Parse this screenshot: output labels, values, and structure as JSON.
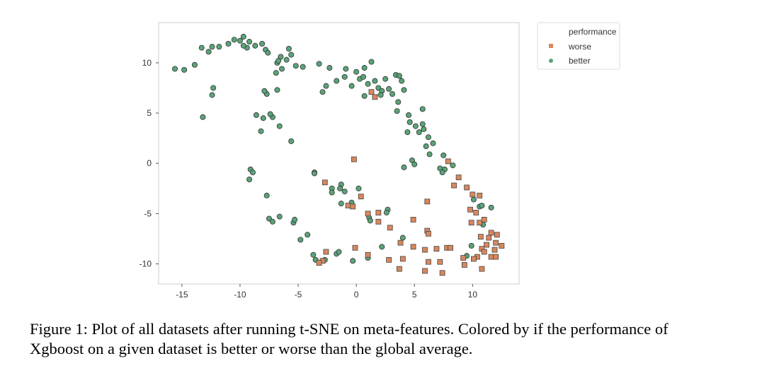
{
  "chart_data": {
    "type": "scatter",
    "title": "",
    "xlabel": "",
    "ylabel": "",
    "xlim": [
      -17,
      14
    ],
    "ylim": [
      -12,
      14
    ],
    "grid": false,
    "x_ticks": [
      -15,
      -10,
      -5,
      0,
      5,
      10
    ],
    "y_ticks": [
      -10,
      -5,
      0,
      5,
      10
    ],
    "legend": {
      "title": "performance",
      "placement": "outside-top-right",
      "entries": [
        {
          "label": "worse",
          "marker": "square",
          "color": "#d9875d"
        },
        {
          "label": "better",
          "marker": "circle",
          "color": "#5aa378"
        }
      ]
    },
    "series": [
      {
        "name": "worse",
        "marker": "square",
        "color": "#d9875d",
        "points": [
          [
            -0.2,
            0.4
          ],
          [
            -2.7,
            -1.9
          ],
          [
            -0.7,
            -4.2
          ],
          [
            -0.3,
            -4.3
          ],
          [
            0.4,
            -3.3
          ],
          [
            1.3,
            7.1
          ],
          [
            1.6,
            6.6
          ],
          [
            1.9,
            -4.9
          ],
          [
            1.0,
            -5.0
          ],
          [
            1.9,
            -5.8
          ],
          [
            2.9,
            -6.4
          ],
          [
            4.9,
            -5.6
          ],
          [
            6.1,
            -3.8
          ],
          [
            6.1,
            -6.7
          ],
          [
            6.2,
            -7.0
          ],
          [
            3.8,
            -7.9
          ],
          [
            4.9,
            -8.3
          ],
          [
            5.9,
            -8.6
          ],
          [
            6.9,
            -8.5
          ],
          [
            7.8,
            -8.4
          ],
          [
            8.1,
            -8.4
          ],
          [
            6.2,
            -9.8
          ],
          [
            7.2,
            -9.8
          ],
          [
            3.7,
            -10.5
          ],
          [
            2.8,
            -9.6
          ],
          [
            4.0,
            -9.5
          ],
          [
            5.9,
            -10.7
          ],
          [
            7.4,
            -10.9
          ],
          [
            -0.1,
            -8.4
          ],
          [
            1.0,
            -9.1
          ],
          [
            -2.6,
            -8.8
          ],
          [
            -2.9,
            -9.7
          ],
          [
            -3.2,
            -9.9
          ],
          [
            7.9,
            0.2
          ],
          [
            8.8,
            -1.4
          ],
          [
            8.4,
            -2.2
          ],
          [
            9.5,
            -2.4
          ],
          [
            10.0,
            -3.1
          ],
          [
            10.6,
            -3.2
          ],
          [
            9.8,
            -4.6
          ],
          [
            10.3,
            -4.9
          ],
          [
            10.6,
            -5.9
          ],
          [
            9.9,
            -5.9
          ],
          [
            11.0,
            -5.6
          ],
          [
            10.7,
            -7.3
          ],
          [
            11.4,
            -7.4
          ],
          [
            11.6,
            -6.9
          ],
          [
            11.2,
            -8.1
          ],
          [
            12.1,
            -7.1
          ],
          [
            12.0,
            -7.9
          ],
          [
            12.5,
            -8.2
          ],
          [
            11.9,
            -8.6
          ],
          [
            10.8,
            -8.5
          ],
          [
            11.0,
            -8.8
          ],
          [
            11.6,
            -9.3
          ],
          [
            10.4,
            -9.3
          ],
          [
            12.0,
            -9.3
          ],
          [
            10.1,
            -9.5
          ],
          [
            9.2,
            -9.4
          ],
          [
            9.3,
            -10.1
          ],
          [
            10.8,
            -10.5
          ]
        ]
      },
      {
        "name": "better",
        "marker": "circle",
        "color": "#5aa378",
        "points": [
          [
            -15.6,
            9.4
          ],
          [
            -14.8,
            9.3
          ],
          [
            -13.9,
            9.8
          ],
          [
            -13.3,
            11.5
          ],
          [
            -12.7,
            11.1
          ],
          [
            -12.4,
            11.6
          ],
          [
            -11.8,
            11.6
          ],
          [
            -11.0,
            11.9
          ],
          [
            -10.5,
            12.3
          ],
          [
            -10.0,
            12.2
          ],
          [
            -9.7,
            12.6
          ],
          [
            -9.4,
            11.5
          ],
          [
            -9.2,
            12.1
          ],
          [
            -8.7,
            11.7
          ],
          [
            -8.1,
            11.9
          ],
          [
            -7.8,
            11.3
          ],
          [
            -7.6,
            11.0
          ],
          [
            -6.8,
            10.0
          ],
          [
            -6.4,
            9.4
          ],
          [
            -6.5,
            10.6
          ],
          [
            -6.0,
            10.3
          ],
          [
            -5.8,
            11.4
          ],
          [
            -5.6,
            10.8
          ],
          [
            -5.2,
            9.7
          ],
          [
            -4.6,
            9.6
          ],
          [
            -9.7,
            11.7
          ],
          [
            -13.2,
            4.6
          ],
          [
            -12.3,
            7.5
          ],
          [
            -12.4,
            6.8
          ],
          [
            -8.6,
            4.8
          ],
          [
            -8.0,
            4.5
          ],
          [
            -7.2,
            4.6
          ],
          [
            -7.4,
            4.9
          ],
          [
            -6.6,
            3.7
          ],
          [
            -8.2,
            3.2
          ],
          [
            -5.6,
            2.2
          ],
          [
            -7.7,
            6.9
          ],
          [
            -7.9,
            7.2
          ],
          [
            -6.8,
            7.3
          ],
          [
            -6.9,
            9.0
          ],
          [
            -6.7,
            10.2
          ],
          [
            -2.6,
            7.7
          ],
          [
            -2.9,
            7.1
          ],
          [
            -3.2,
            9.9
          ],
          [
            -2.3,
            9.5
          ],
          [
            -1.7,
            8.2
          ],
          [
            -1.0,
            8.6
          ],
          [
            -0.9,
            9.4
          ],
          [
            -0.4,
            7.7
          ],
          [
            0.0,
            9.1
          ],
          [
            0.3,
            8.4
          ],
          [
            0.6,
            8.6
          ],
          [
            0.7,
            9.5
          ],
          [
            1.3,
            10.1
          ],
          [
            1.0,
            7.9
          ],
          [
            0.7,
            6.7
          ],
          [
            1.6,
            8.2
          ],
          [
            1.9,
            7.5
          ],
          [
            2.2,
            7.2
          ],
          [
            2.1,
            6.8
          ],
          [
            2.5,
            8.4
          ],
          [
            2.8,
            7.4
          ],
          [
            3.1,
            6.9
          ],
          [
            3.4,
            8.8
          ],
          [
            3.9,
            8.2
          ],
          [
            3.7,
            8.7
          ],
          [
            4.1,
            7.3
          ],
          [
            3.6,
            6.1
          ],
          [
            3.5,
            5.2
          ],
          [
            4.5,
            4.8
          ],
          [
            4.6,
            4.1
          ],
          [
            5.1,
            3.7
          ],
          [
            5.4,
            3.1
          ],
          [
            4.4,
            3.1
          ],
          [
            5.7,
            5.4
          ],
          [
            5.7,
            3.9
          ],
          [
            6.2,
            2.6
          ],
          [
            6.0,
            1.7
          ],
          [
            5.8,
            3.4
          ],
          [
            6.6,
            2.0
          ],
          [
            6.3,
            0.9
          ],
          [
            4.8,
            0.3
          ],
          [
            4.1,
            -0.4
          ],
          [
            5.0,
            -0.1
          ],
          [
            7.5,
            0.8
          ],
          [
            7.2,
            -0.5
          ],
          [
            7.6,
            -0.6
          ],
          [
            7.4,
            -0.9
          ],
          [
            8.3,
            -0.2
          ],
          [
            10.1,
            -3.6
          ],
          [
            10.6,
            -4.3
          ],
          [
            10.8,
            -4.2
          ],
          [
            11.6,
            -4.4
          ],
          [
            10.9,
            -6.1
          ],
          [
            9.9,
            -8.2
          ],
          [
            9.5,
            -9.2
          ],
          [
            -9.1,
            -0.6
          ],
          [
            -9.2,
            -1.6
          ],
          [
            -8.9,
            -0.9
          ],
          [
            -7.7,
            -3.2
          ],
          [
            -7.5,
            -5.5
          ],
          [
            -7.2,
            -5.8
          ],
          [
            -6.6,
            -5.3
          ],
          [
            -5.4,
            -5.9
          ],
          [
            -5.3,
            -5.6
          ],
          [
            -4.8,
            -7.6
          ],
          [
            -4.2,
            -7.1
          ],
          [
            -3.6,
            -0.9
          ],
          [
            -3.6,
            -1.0
          ],
          [
            -2.1,
            -2.5
          ],
          [
            -1.3,
            -2.1
          ],
          [
            -1.4,
            -2.5
          ],
          [
            -2.1,
            -2.9
          ],
          [
            -1.0,
            -2.8
          ],
          [
            -1.3,
            -4.0
          ],
          [
            -0.4,
            -3.9
          ],
          [
            0.2,
            -2.5
          ],
          [
            1.1,
            -5.4
          ],
          [
            1.2,
            -5.7
          ],
          [
            2.7,
            -4.6
          ],
          [
            2.6,
            -4.9
          ],
          [
            4.0,
            -7.4
          ],
          [
            2.2,
            -8.3
          ],
          [
            -3.5,
            -9.6
          ],
          [
            -3.7,
            -9.1
          ],
          [
            -2.7,
            -9.6
          ],
          [
            -1.7,
            -9.0
          ],
          [
            -1.5,
            -8.8
          ],
          [
            -0.3,
            -9.7
          ],
          [
            1.0,
            -9.4
          ]
        ]
      }
    ]
  },
  "caption": {
    "line1": "Figure 1: Plot of all datasets after running t-SNE on meta-features. Colored by if the performance of",
    "line2": "Xgboost on a given dataset is better or worse than the global average."
  }
}
